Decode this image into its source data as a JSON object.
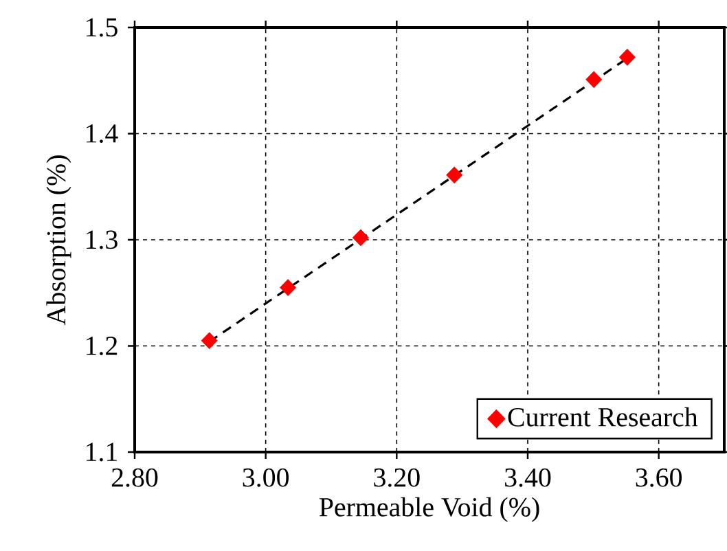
{
  "chart_data": {
    "type": "scatter",
    "xlabel": "Permeable Void (%)",
    "ylabel": "Absorption (%)",
    "xlim": [
      2.8,
      3.7
    ],
    "xticks": [
      {
        "value": 2.8,
        "label": "2.80"
      },
      {
        "value": 3.0,
        "label": "3.00"
      },
      {
        "value": 3.2,
        "label": "3.20"
      },
      {
        "value": 3.4,
        "label": "3.40"
      },
      {
        "value": 3.6,
        "label": "3.60"
      }
    ],
    "ylim": [
      1.1,
      1.5
    ],
    "yticks": [
      1.1,
      1.2,
      1.3,
      1.4,
      1.5
    ],
    "grid": true,
    "legend": "bottom right",
    "marker": "diamond",
    "series": [
      {
        "name": "Current Research",
        "color": "#ff0000",
        "x": [
          2.914,
          3.034,
          3.145,
          3.288,
          3.501,
          3.552
        ],
        "values": [
          1.205,
          1.255,
          1.302,
          1.361,
          1.451,
          1.472
        ]
      },
      {
        "type": "line",
        "color": "#000000",
        "line_style": "dashed",
        "marker": "none",
        "x": [
          2.914,
          3.552
        ],
        "values": [
          1.204,
          1.471
        ]
      }
    ]
  }
}
